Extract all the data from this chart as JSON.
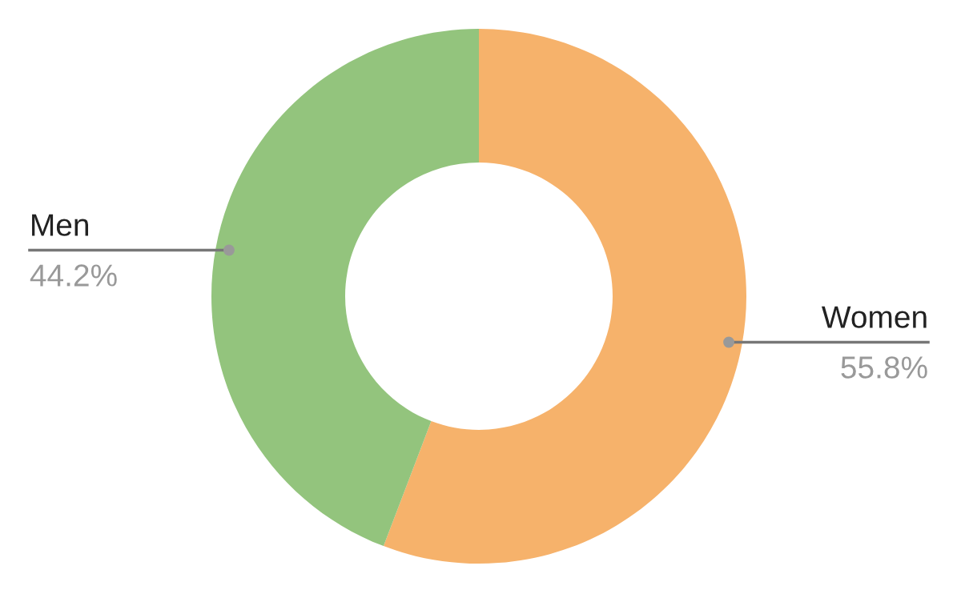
{
  "chart_data": {
    "type": "donut",
    "categories": [
      "Women",
      "Men"
    ],
    "values": [
      55.8,
      44.2
    ],
    "value_labels": [
      "55.8%",
      "44.2%"
    ],
    "colors": [
      "#f6b26b",
      "#93c47d"
    ],
    "legend": false
  }
}
